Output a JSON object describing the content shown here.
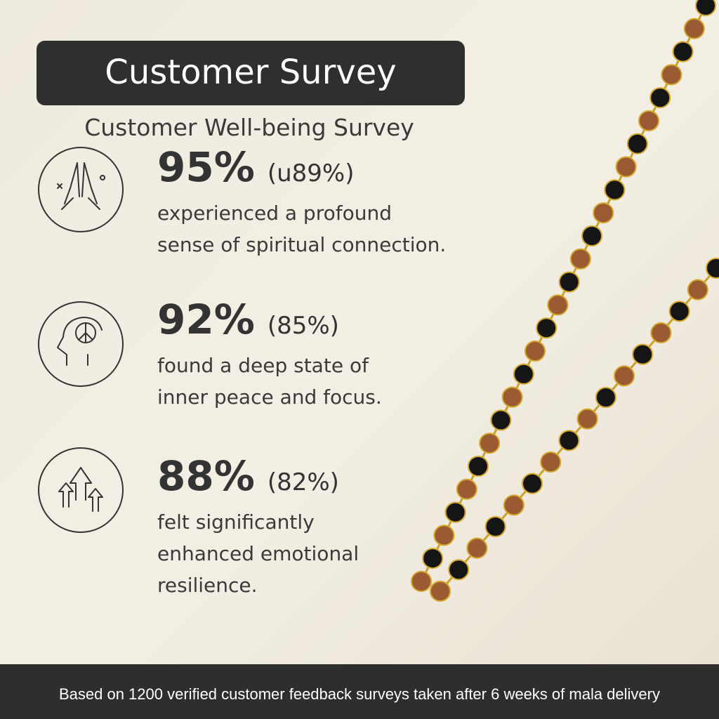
{
  "header": {
    "title": "Customer Survey",
    "subtitle": "Customer Well-being Survey"
  },
  "stats": [
    {
      "value": "95%",
      "comparison": "(u89%)",
      "description": [
        "experienced a profound",
        "sense of spiritual connection."
      ]
    },
    {
      "value": "92%",
      "comparison": "(85%)",
      "description": [
        "found a deep state of",
        "inner peace and focus."
      ]
    },
    {
      "value": "88%",
      "comparison": "(82%)",
      "description": [
        "felt significantly",
        "enhanced emotional",
        "resilience."
      ]
    }
  ],
  "footer": {
    "note": "Based on 1200 verified customer feedback surveys taken after 6 weeks of mala delivery"
  }
}
